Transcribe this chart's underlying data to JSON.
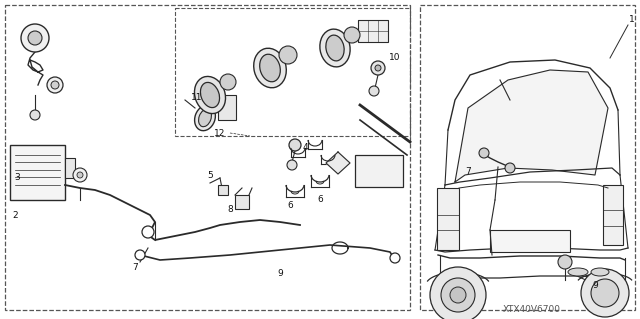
{
  "bg_color": "#ffffff",
  "line_color": "#2a2a2a",
  "dash_color": "#555555",
  "fig_width": 6.4,
  "fig_height": 3.19,
  "dpi": 100,
  "watermark": "XTX40V6700",
  "label_color": "#222222"
}
